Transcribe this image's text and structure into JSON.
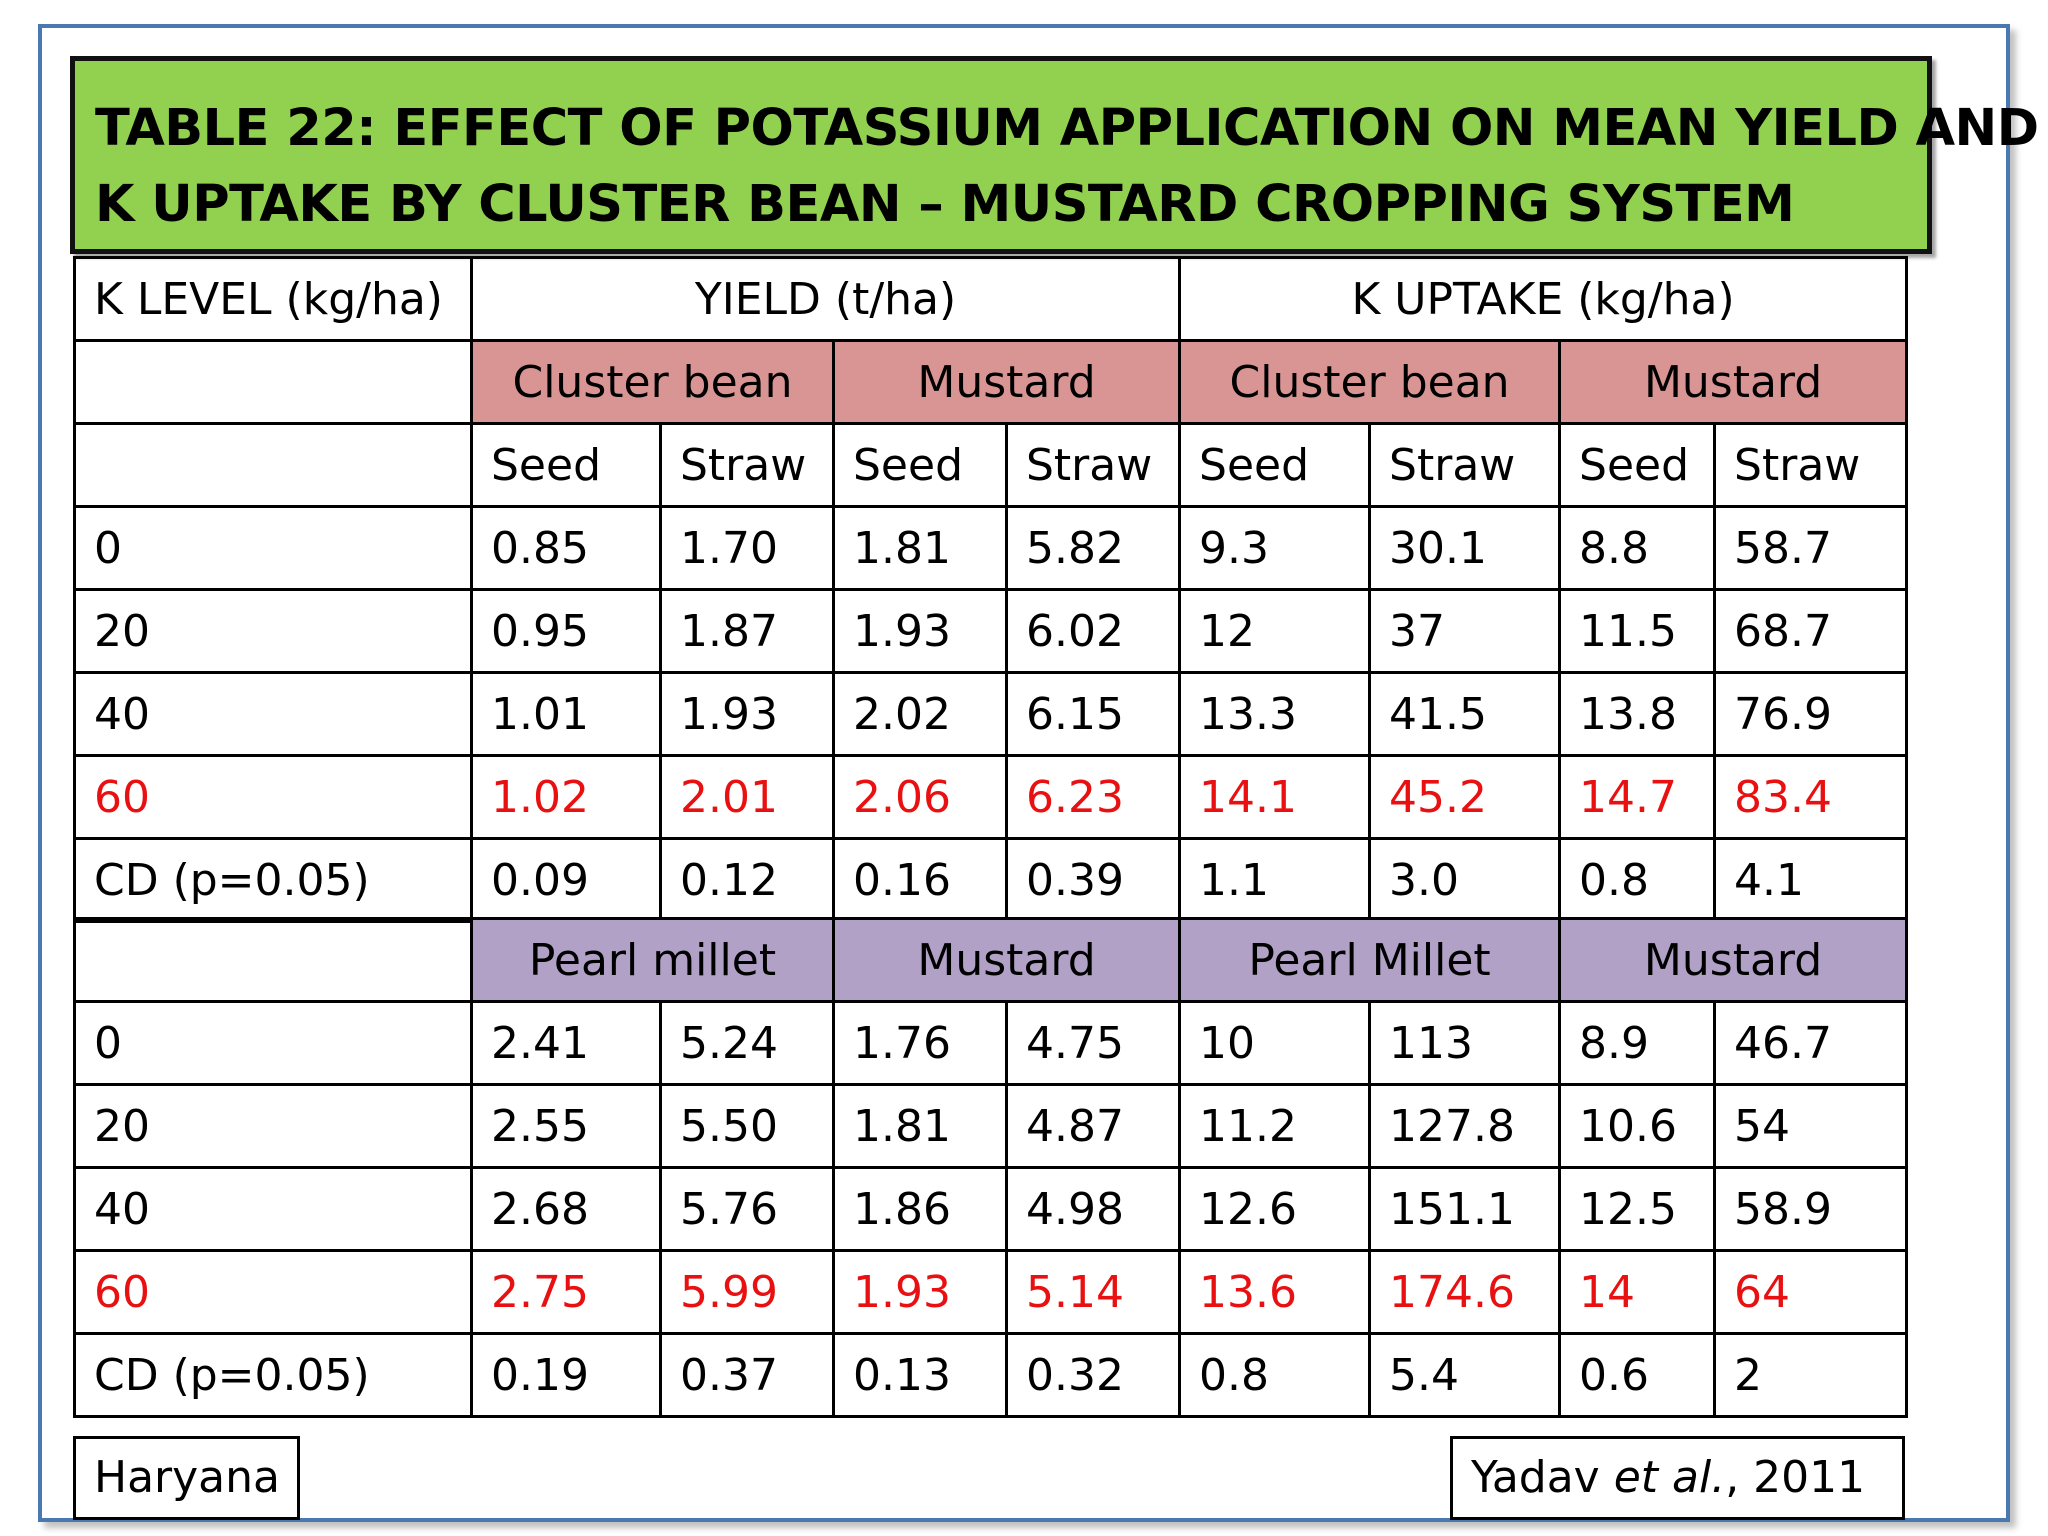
{
  "title": {
    "line1": "TABLE 22: EFFECT OF POTASSIUM APPLICATION ON MEAN YIELD AND",
    "line2": "K UPTAKE BY CLUSTER BEAN – MUSTARD CROPPING SYSTEM"
  },
  "header": {
    "k_level": "K LEVEL (kg/ha)",
    "yield": "YIELD (t/ha)",
    "uptake": "K UPTAKE (kg/ha)",
    "crops1": [
      "Cluster bean",
      "Mustard",
      "Cluster bean",
      "Mustard"
    ],
    "parts": [
      "Seed",
      "Straw",
      "Seed",
      "Straw",
      "Seed",
      "Straw",
      "Seed",
      "Straw"
    ]
  },
  "table1": {
    "rows": [
      {
        "k": "0",
        "v": [
          "0.85",
          "1.70",
          "1.81",
          "5.82",
          "9.3",
          "30.1",
          "8.8",
          "58.7"
        ]
      },
      {
        "k": "20",
        "v": [
          "0.95",
          "1.87",
          "1.93",
          "6.02",
          "12",
          "37",
          "11.5",
          "68.7"
        ]
      },
      {
        "k": "40",
        "v": [
          "1.01",
          "1.93",
          "2.02",
          "6.15",
          "13.3",
          "41.5",
          "13.8",
          "76.9"
        ]
      },
      {
        "k": "60",
        "v": [
          "1.02",
          "2.01",
          "2.06",
          "6.23",
          "14.1",
          "45.2",
          "14.7",
          "83.4"
        ]
      },
      {
        "k": "CD (p=0.05)",
        "v": [
          "0.09",
          "0.12",
          "0.16",
          "0.39",
          "1.1",
          "3.0",
          "0.8",
          "4.1"
        ]
      }
    ]
  },
  "table2": {
    "crops": [
      "Pearl millet",
      "Mustard",
      "Pearl Millet",
      "Mustard"
    ],
    "rows": [
      {
        "k": "0",
        "v": [
          "2.41",
          "5.24",
          "1.76",
          "4.75",
          "10",
          "113",
          "8.9",
          "46.7"
        ]
      },
      {
        "k": "20",
        "v": [
          "2.55",
          "5.50",
          "1.81",
          "4.87",
          "11.2",
          "127.8",
          "10.6",
          "54"
        ]
      },
      {
        "k": "40",
        "v": [
          "2.68",
          "5.76",
          "1.86",
          "4.98",
          "12.6",
          "151.1",
          "12.5",
          "58.9"
        ]
      },
      {
        "k": "60",
        "v": [
          "2.75",
          "5.99",
          "1.93",
          "5.14",
          "13.6",
          "174.6",
          "14",
          "64"
        ]
      },
      {
        "k": "CD (p=0.05)",
        "v": [
          "0.19",
          "0.37",
          "0.13",
          "0.32",
          "0.8",
          "5.4",
          "0.6",
          "2"
        ]
      }
    ]
  },
  "footer": {
    "location": "Haryana",
    "citation_author": "Yadav ",
    "citation_etal": "et al.",
    "citation_year": ", 2011"
  },
  "colors": {
    "title_bg": "#92d050",
    "crop_header_1": "#d99594",
    "crop_header_2": "#b2a1c7",
    "highlight_text": "#e81010",
    "frame_border": "#4a78b0"
  }
}
